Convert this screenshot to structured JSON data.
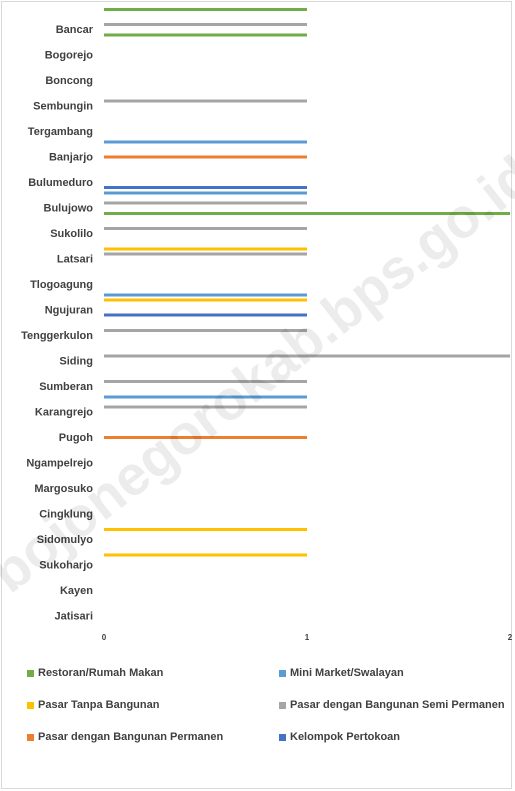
{
  "chart_data": {
    "type": "bar",
    "orientation": "horizontal",
    "categories": [
      "Bancar",
      "Bogorejo",
      "Boncong",
      "Sembungin",
      "Tergambang",
      "Banjarjo",
      "Bulumeduro",
      "Bulujowo",
      "Sukolilo",
      "Latsari",
      "Tlogoagung",
      "Ngujuran",
      "Tenggerkulon",
      "Siding",
      "Sumberan",
      "Karangrejo",
      "Pugoh",
      "Ngampelrejo",
      "Margosuko",
      "Cingklung",
      "Sidomulyo",
      "Sukoharjo",
      "Kayen",
      "Jatisari"
    ],
    "series": [
      {
        "name": "Restoran/Rumah Makan",
        "color": "#70ad47",
        "values": [
          1,
          1,
          0,
          0,
          0,
          0,
          0,
          0,
          2,
          0,
          0,
          0,
          0,
          0,
          0,
          0,
          0,
          0,
          0,
          0,
          0,
          0,
          0,
          0
        ]
      },
      {
        "name": "Mini Market/Swalayan",
        "color": "#5b9bd5",
        "values": [
          0,
          0,
          0,
          0,
          0,
          1,
          0,
          1,
          0,
          0,
          0,
          1,
          0,
          0,
          0,
          1,
          0,
          0,
          0,
          0,
          0,
          0,
          0,
          0
        ]
      },
      {
        "name": "Pasar Tanpa Bangunan",
        "color": "#ffc000",
        "values": [
          0,
          0,
          0,
          0,
          0,
          0,
          0,
          0,
          0,
          1,
          0,
          1,
          0,
          0,
          0,
          0,
          0,
          0,
          0,
          0,
          1,
          1,
          0,
          0
        ]
      },
      {
        "name": "Pasar dengan Bangunan Semi Permanen",
        "color": "#a5a5a5",
        "values": [
          1,
          0,
          0,
          1,
          0,
          0,
          0,
          1,
          1,
          1,
          0,
          0,
          1,
          2,
          1,
          1,
          0,
          0,
          0,
          0,
          0,
          0,
          0,
          0
        ]
      },
      {
        "name": "Pasar dengan Bangunan Permanen",
        "color": "#ed7d31",
        "values": [
          0,
          0,
          0,
          0,
          0,
          1,
          0,
          0,
          0,
          0,
          0,
          0,
          0,
          0,
          0,
          0,
          1,
          0,
          0,
          0,
          0,
          0,
          0,
          0
        ]
      },
      {
        "name": "Kelompok Pertokoan",
        "color": "#4472c4",
        "values": [
          0,
          0,
          0,
          0,
          0,
          0,
          1,
          0,
          0,
          0,
          0,
          1,
          0,
          0,
          0,
          0,
          0,
          0,
          0,
          0,
          0,
          0,
          0,
          0
        ]
      }
    ],
    "xlim": [
      0,
      2
    ],
    "x_ticks": [
      "0",
      "1",
      "2"
    ],
    "grid": false,
    "legend_position": "bottom"
  },
  "watermark": "bojonegorokab.bps.go.id"
}
